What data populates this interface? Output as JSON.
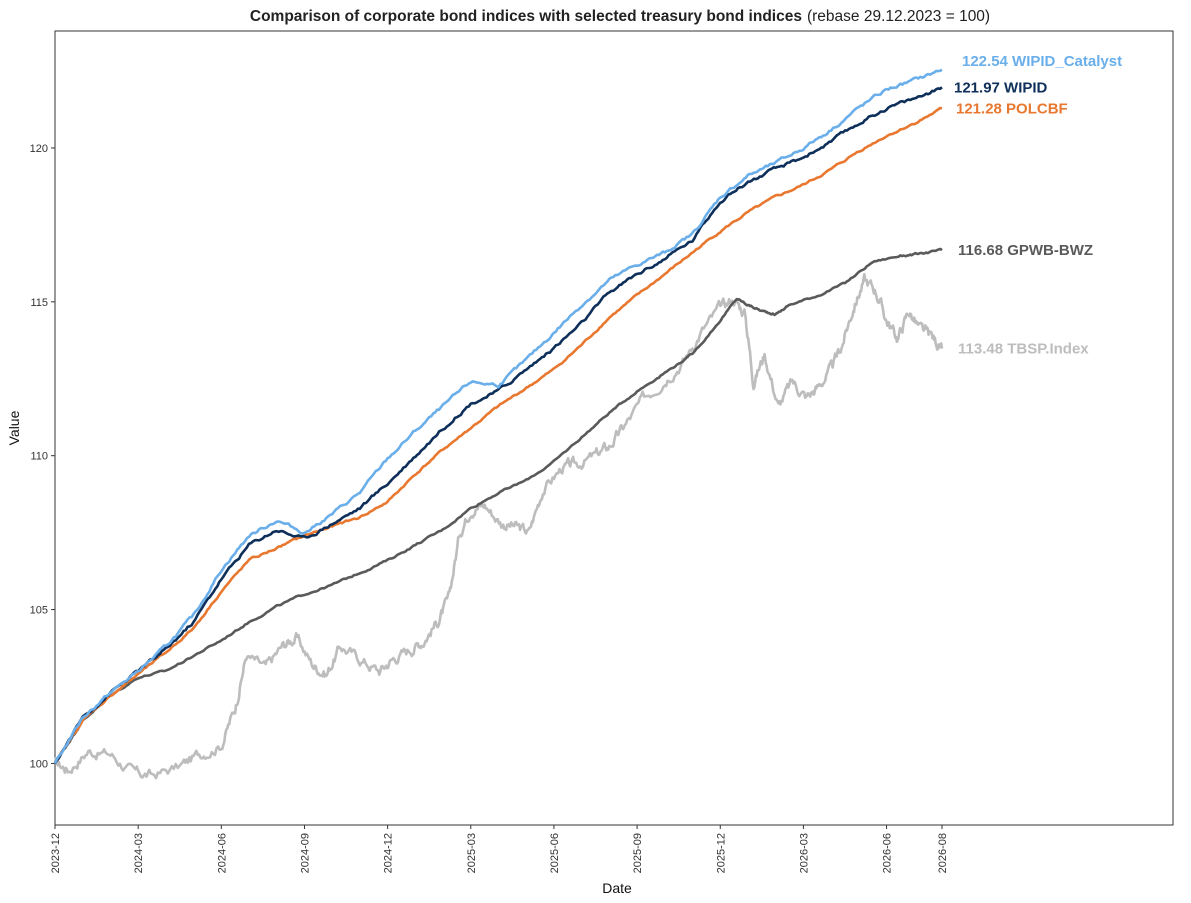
{
  "chart_data": {
    "type": "line",
    "title": "Comparison of corporate bond indices with selected treasury bond indices",
    "subtitle": "(rebase 29.12.2023 = 100)",
    "xlabel": "Date",
    "ylabel": "Value",
    "x_ticks": [
      "2023-12",
      "2024-03",
      "2024-06",
      "2024-09",
      "2024-12",
      "2025-03",
      "2025-06",
      "2025-09",
      "2025-12",
      "2026-03",
      "2026-06",
      "2026-08"
    ],
    "y_ticks": [
      "100",
      "105",
      "110",
      "115",
      "120"
    ],
    "xlim_months": [
      0,
      32
    ],
    "ylim": [
      98.0,
      123.8
    ],
    "grid": false,
    "legend": "end-of-line labels",
    "series": [
      {
        "name": "TBSP.Index",
        "end_label": "113.48 TBSP.Index",
        "color": "#bdbdbd",
        "points": [
          [
            0,
            100.0
          ],
          [
            0.5,
            99.8
          ],
          [
            1.2,
            100.4
          ],
          [
            2.0,
            100.3
          ],
          [
            2.8,
            99.7
          ],
          [
            3.5,
            99.6
          ],
          [
            4.5,
            99.9
          ],
          [
            5.2,
            100.3
          ],
          [
            6.0,
            100.6
          ],
          [
            6.5,
            101.8
          ],
          [
            6.9,
            103.5
          ],
          [
            7.6,
            103.1
          ],
          [
            8.2,
            103.8
          ],
          [
            8.7,
            104.1
          ],
          [
            9.3,
            103.2
          ],
          [
            9.8,
            102.9
          ],
          [
            10.3,
            103.8
          ],
          [
            11.0,
            103.4
          ],
          [
            11.7,
            103.0
          ],
          [
            12.2,
            103.4
          ],
          [
            12.8,
            103.7
          ],
          [
            13.3,
            104.0
          ],
          [
            13.8,
            104.6
          ],
          [
            14.2,
            105.3
          ],
          [
            14.6,
            107.5
          ],
          [
            15.0,
            108.3
          ],
          [
            15.5,
            108.4
          ],
          [
            16.1,
            107.8
          ],
          [
            16.6,
            107.7
          ],
          [
            17.1,
            107.5
          ],
          [
            17.6,
            108.9
          ],
          [
            18.3,
            109.6
          ],
          [
            18.8,
            109.7
          ],
          [
            19.5,
            110.0
          ],
          [
            20.0,
            110.3
          ],
          [
            20.5,
            110.9
          ],
          [
            21.2,
            111.8
          ],
          [
            22.0,
            112.5
          ],
          [
            22.7,
            113.1
          ],
          [
            23.3,
            114.0
          ],
          [
            24.0,
            114.8
          ],
          [
            24.5,
            115.1
          ],
          [
            24.9,
            114.6
          ],
          [
            25.2,
            112.4
          ],
          [
            25.6,
            113.3
          ],
          [
            26.1,
            111.6
          ],
          [
            26.6,
            112.4
          ],
          [
            27.1,
            111.9
          ],
          [
            27.5,
            112.2
          ],
          [
            28.0,
            112.8
          ],
          [
            28.4,
            113.6
          ],
          [
            28.8,
            114.8
          ],
          [
            29.2,
            115.7
          ],
          [
            29.6,
            115.4
          ],
          [
            30.0,
            114.4
          ],
          [
            30.4,
            113.8
          ],
          [
            30.8,
            114.7
          ],
          [
            31.2,
            114.1
          ],
          [
            31.6,
            113.9
          ],
          [
            32.0,
            113.48
          ]
        ]
      },
      {
        "name": "GPWB-BWZ",
        "end_label": "116.68 GPWB-BWZ",
        "color": "#5a5a5a",
        "points": [
          [
            0,
            100.0
          ],
          [
            0.5,
            100.7
          ],
          [
            1.0,
            101.4
          ],
          [
            2.0,
            102.2
          ],
          [
            3.0,
            102.8
          ],
          [
            4.0,
            103.0
          ],
          [
            5.0,
            103.5
          ],
          [
            6.0,
            104.0
          ],
          [
            7.0,
            104.6
          ],
          [
            8.0,
            105.1
          ],
          [
            9.0,
            105.5
          ],
          [
            10.0,
            105.8
          ],
          [
            11.0,
            106.2
          ],
          [
            12.0,
            106.6
          ],
          [
            13.0,
            107.1
          ],
          [
            14.0,
            107.6
          ],
          [
            15.0,
            108.3
          ],
          [
            16.0,
            108.8
          ],
          [
            17.0,
            109.2
          ],
          [
            18.0,
            109.8
          ],
          [
            19.0,
            110.6
          ],
          [
            20.0,
            111.4
          ],
          [
            21.0,
            112.1
          ],
          [
            22.0,
            112.7
          ],
          [
            23.0,
            113.3
          ],
          [
            24.0,
            114.4
          ],
          [
            24.6,
            115.1
          ],
          [
            25.0,
            114.9
          ],
          [
            25.5,
            114.7
          ],
          [
            26.0,
            114.6
          ],
          [
            26.5,
            114.9
          ],
          [
            27.5,
            115.2
          ],
          [
            28.5,
            115.6
          ],
          [
            29.5,
            116.3
          ],
          [
            30.5,
            116.5
          ],
          [
            31.2,
            116.55
          ],
          [
            32.0,
            116.68
          ]
        ]
      },
      {
        "name": "POLCBF",
        "end_label": "121.28 POLCBF",
        "color": "#e8782f",
        "points": [
          [
            0,
            100.0
          ],
          [
            1.0,
            101.4
          ],
          [
            2.0,
            102.2
          ],
          [
            3.0,
            102.9
          ],
          [
            4.0,
            103.6
          ],
          [
            5.0,
            104.4
          ],
          [
            6.0,
            105.6
          ],
          [
            7.0,
            106.6
          ],
          [
            8.0,
            107.0
          ],
          [
            9.0,
            107.4
          ],
          [
            10.0,
            107.7
          ],
          [
            11.0,
            108.0
          ],
          [
            12.0,
            108.5
          ],
          [
            13.0,
            109.4
          ],
          [
            14.0,
            110.2
          ],
          [
            15.0,
            110.9
          ],
          [
            16.0,
            111.6
          ],
          [
            17.0,
            112.2
          ],
          [
            18.0,
            112.8
          ],
          [
            19.0,
            113.6
          ],
          [
            20.0,
            114.5
          ],
          [
            21.0,
            115.2
          ],
          [
            22.0,
            115.9
          ],
          [
            23.0,
            116.6
          ],
          [
            24.0,
            117.3
          ],
          [
            25.0,
            117.9
          ],
          [
            26.0,
            118.4
          ],
          [
            27.0,
            118.8
          ],
          [
            28.0,
            119.3
          ],
          [
            29.0,
            119.9
          ],
          [
            30.0,
            120.4
          ],
          [
            31.0,
            120.8
          ],
          [
            32.0,
            121.28
          ]
        ]
      },
      {
        "name": "WIPID",
        "end_label": "121.97 WIPID",
        "color": "#0d2f59",
        "points": [
          [
            0,
            100.0
          ],
          [
            1.0,
            101.5
          ],
          [
            2.0,
            102.3
          ],
          [
            3.0,
            103.0
          ],
          [
            4.0,
            103.7
          ],
          [
            5.0,
            104.6
          ],
          [
            6.0,
            106.0
          ],
          [
            7.0,
            107.1
          ],
          [
            8.0,
            107.6
          ],
          [
            9.0,
            107.3
          ],
          [
            10.0,
            107.8
          ],
          [
            11.0,
            108.3
          ],
          [
            12.0,
            109.1
          ],
          [
            13.0,
            110.0
          ],
          [
            14.0,
            110.9
          ],
          [
            15.0,
            111.7
          ],
          [
            16.0,
            112.1
          ],
          [
            17.0,
            112.8
          ],
          [
            18.0,
            113.5
          ],
          [
            19.0,
            114.3
          ],
          [
            20.0,
            115.3
          ],
          [
            21.0,
            115.9
          ],
          [
            22.0,
            116.4
          ],
          [
            23.0,
            117.0
          ],
          [
            24.0,
            118.3
          ],
          [
            25.0,
            118.9
          ],
          [
            26.0,
            119.3
          ],
          [
            27.0,
            119.7
          ],
          [
            28.0,
            120.2
          ],
          [
            29.0,
            120.8
          ],
          [
            30.0,
            121.3
          ],
          [
            31.0,
            121.6
          ],
          [
            32.0,
            121.97
          ]
        ]
      },
      {
        "name": "WIPID_Catalyst",
        "end_label": "122.54 WIPID_Catalyst",
        "color": "#6aaeea",
        "points": [
          [
            0,
            100.0
          ],
          [
            1.0,
            101.5
          ],
          [
            2.0,
            102.3
          ],
          [
            3.0,
            103.0
          ],
          [
            4.0,
            103.8
          ],
          [
            5.0,
            104.8
          ],
          [
            6.0,
            106.3
          ],
          [
            7.0,
            107.4
          ],
          [
            8.0,
            107.9
          ],
          [
            9.0,
            107.5
          ],
          [
            10.0,
            108.1
          ],
          [
            11.0,
            108.8
          ],
          [
            12.0,
            109.9
          ],
          [
            13.0,
            110.8
          ],
          [
            14.0,
            111.6
          ],
          [
            15.0,
            112.4
          ],
          [
            16.0,
            112.3
          ],
          [
            17.0,
            113.1
          ],
          [
            18.0,
            114.0
          ],
          [
            19.0,
            114.9
          ],
          [
            20.0,
            115.7
          ],
          [
            21.0,
            116.2
          ],
          [
            22.0,
            116.6
          ],
          [
            23.0,
            117.2
          ],
          [
            24.0,
            118.4
          ],
          [
            25.0,
            119.1
          ],
          [
            26.0,
            119.5
          ],
          [
            27.0,
            120.0
          ],
          [
            28.0,
            120.6
          ],
          [
            29.0,
            121.3
          ],
          [
            30.0,
            121.9
          ],
          [
            31.0,
            122.2
          ],
          [
            32.0,
            122.54
          ]
        ]
      }
    ]
  }
}
